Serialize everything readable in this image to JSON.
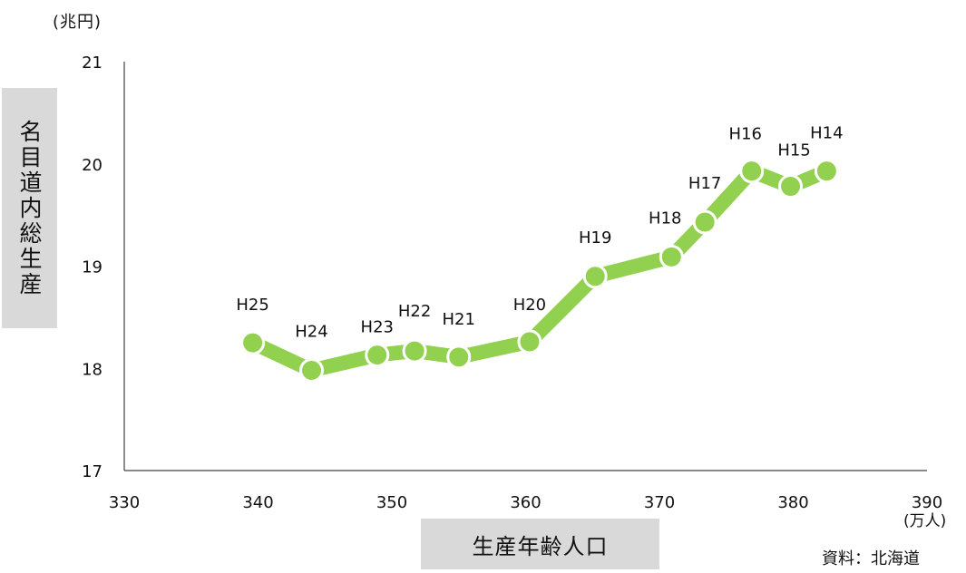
{
  "chart_data": {
    "type": "line",
    "title": "",
    "xlabel": "生産年齢人口",
    "ylabel": "名目道内総生産",
    "x_unit": "(万人)",
    "y_unit": "(兆円)",
    "source": "資料：北海道",
    "xlim": [
      330,
      390
    ],
    "ylim": [
      17,
      21
    ],
    "xticks": [
      330,
      340,
      350,
      360,
      370,
      380,
      390
    ],
    "yticks": [
      17,
      18,
      19,
      20,
      21
    ],
    "grid": false,
    "legend": "none",
    "line_color": "#92d050",
    "marker_stroke": "#ffffff",
    "points": [
      {
        "label": "H25",
        "x": 339.6,
        "y": 18.25
      },
      {
        "label": "H24",
        "x": 344.0,
        "y": 17.98
      },
      {
        "label": "H23",
        "x": 348.9,
        "y": 18.13
      },
      {
        "label": "H22",
        "x": 351.7,
        "y": 18.17
      },
      {
        "label": "H21",
        "x": 355.0,
        "y": 18.11
      },
      {
        "label": "H20",
        "x": 360.3,
        "y": 18.26
      },
      {
        "label": "H19",
        "x": 365.2,
        "y": 18.9
      },
      {
        "label": "H18",
        "x": 370.9,
        "y": 19.09
      },
      {
        "label": "H17",
        "x": 373.4,
        "y": 19.43
      },
      {
        "label": "H16",
        "x": 376.9,
        "y": 19.93
      },
      {
        "label": "H15",
        "x": 379.8,
        "y": 19.78
      },
      {
        "label": "H14",
        "x": 382.5,
        "y": 19.93
      }
    ]
  }
}
